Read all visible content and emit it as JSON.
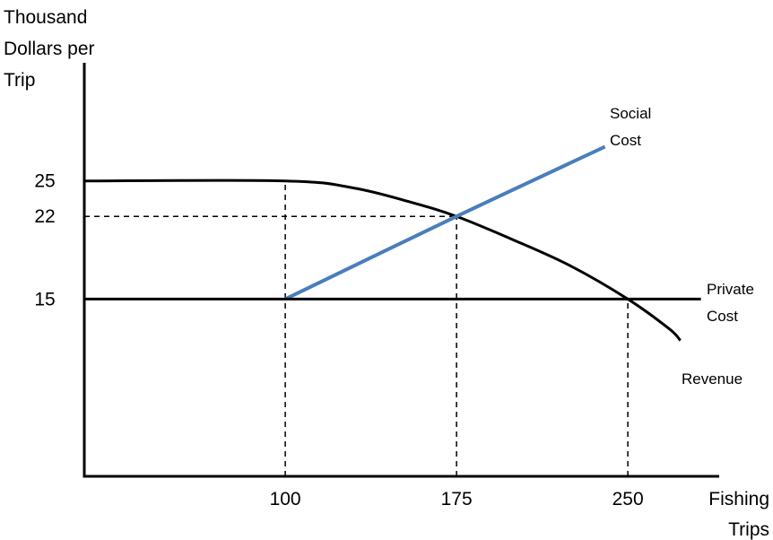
{
  "chart_data": {
    "type": "line",
    "ylabel_lines": [
      "Thousand",
      "Dollars per",
      "Trip"
    ],
    "xlabel_lines": [
      "Fishing",
      "Trips"
    ],
    "x_ticks": [
      {
        "value": 100,
        "label": "100"
      },
      {
        "value": 175,
        "label": "175"
      },
      {
        "value": 250,
        "label": "250"
      }
    ],
    "y_ticks": [
      {
        "value": 25,
        "label": "25"
      },
      {
        "value": 22,
        "label": "22"
      },
      {
        "value": 15,
        "label": "15"
      }
    ],
    "xlim": [
      12,
      290
    ],
    "ylim": [
      0,
      35
    ],
    "series": [
      {
        "name": "Revenue",
        "label_lines": [
          "Revenue"
        ],
        "color": "#000000",
        "points": [
          [
            12,
            25
          ],
          [
            100,
            25
          ],
          [
            130,
            24.4
          ],
          [
            155,
            23.2
          ],
          [
            175,
            22
          ],
          [
            200,
            20
          ],
          [
            225,
            17.8
          ],
          [
            250,
            15
          ],
          [
            268,
            12.5
          ],
          [
            273,
            11.5
          ]
        ]
      },
      {
        "name": "Social Cost",
        "label_lines": [
          "Social",
          "Cost"
        ],
        "color": "#4a7ebb",
        "points": [
          [
            100,
            15
          ],
          [
            175,
            22
          ],
          [
            240,
            27.9
          ]
        ]
      },
      {
        "name": "Private Cost",
        "label_lines": [
          "Private",
          "Cost"
        ],
        "color": "#000000",
        "points": [
          [
            12,
            15
          ],
          [
            282,
            15
          ]
        ]
      }
    ],
    "reference_lines": [
      {
        "axis": "x",
        "value": 100,
        "from_y": 0,
        "to_y": 25
      },
      {
        "axis": "x",
        "value": 175,
        "from_y": 0,
        "to_y": 22
      },
      {
        "axis": "x",
        "value": 250,
        "from_y": 0,
        "to_y": 15
      },
      {
        "axis": "y",
        "value": 22,
        "from_x": 12,
        "to_x": 175
      }
    ],
    "grid": false,
    "legend": "none"
  }
}
